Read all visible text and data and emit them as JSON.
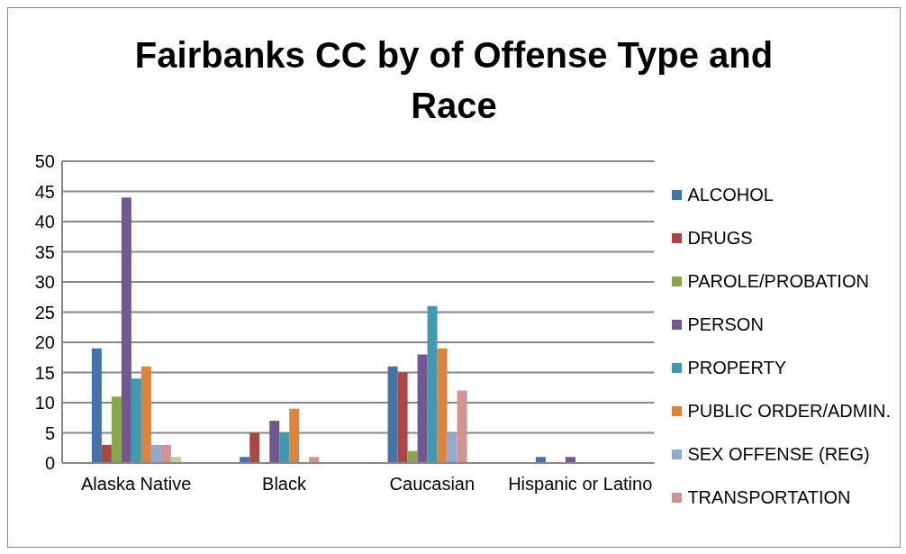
{
  "chart_data": {
    "type": "bar",
    "title": "Fairbanks CC by of Offense Type and Race",
    "categories": [
      "Alaska Native",
      "Black",
      "Caucasian",
      "Hispanic or Latino"
    ],
    "series": [
      {
        "name": "ALCOHOL",
        "color": "#4572a7",
        "values": [
          19,
          1,
          16,
          1
        ]
      },
      {
        "name": "DRUGS",
        "color": "#aa4643",
        "values": [
          3,
          5,
          15,
          0
        ]
      },
      {
        "name": "PAROLE/PROBATION",
        "color": "#89a54e",
        "values": [
          11,
          0,
          2,
          0
        ]
      },
      {
        "name": "PERSON",
        "color": "#71588f",
        "values": [
          44,
          7,
          18,
          1
        ]
      },
      {
        "name": "PROPERTY",
        "color": "#4198af",
        "values": [
          14,
          5,
          26,
          0
        ]
      },
      {
        "name": "PUBLIC ORDER/ADMIN.",
        "color": "#db843d",
        "values": [
          16,
          9,
          19,
          0
        ]
      },
      {
        "name": "SEX OFFENSE (REG)",
        "color": "#93a9cf",
        "values": [
          3,
          0,
          5,
          0
        ]
      },
      {
        "name": "TRANSPORTATION",
        "color": "#d19392",
        "values": [
          3,
          1,
          12,
          0
        ]
      },
      {
        "color": "#b9cd96",
        "values": [
          1,
          0,
          0,
          0
        ]
      }
    ],
    "ylim": [
      0,
      50
    ],
    "yticks": [
      0,
      5,
      10,
      15,
      20,
      25,
      30,
      35,
      40,
      45,
      50
    ],
    "grid": "y",
    "legend": "right"
  }
}
